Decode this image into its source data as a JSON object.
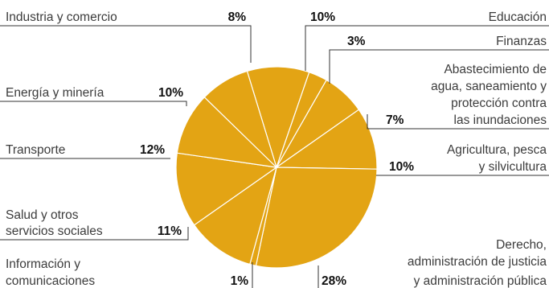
{
  "chart_data": {
    "type": "pie",
    "title": "",
    "colors": {
      "slice": "#e3a414",
      "separator": "#ffffff",
      "text": "#3c3c3c",
      "percent": "#111111"
    },
    "slices": [
      {
        "label": "Educación",
        "value": 10,
        "display": "10%"
      },
      {
        "label": "Finanzas",
        "value": 3,
        "display": "3%"
      },
      {
        "label": "Abastecimiento de agua, saneamiento y protección contra las inundaciones",
        "value": 7,
        "display": "7%"
      },
      {
        "label": "Agricultura, pesca y silvicultura",
        "value": 10,
        "display": "10%"
      },
      {
        "label": "Derecho, administración de justicia y administración pública",
        "value": 28,
        "display": "28%"
      },
      {
        "label": "Información y comunicaciones",
        "value": 1,
        "display": "1%"
      },
      {
        "label": "Salud y otros servicios sociales",
        "value": 11,
        "display": "11%"
      },
      {
        "label": "Transporte",
        "value": 12,
        "display": "12%"
      },
      {
        "label": "Energía y minería",
        "value": 10,
        "display": "10%"
      },
      {
        "label": "Industria y comercio",
        "value": 8,
        "display": "8%"
      }
    ]
  },
  "labels": {
    "educacion": {
      "line1": "Educación"
    },
    "finanzas": {
      "line1": "Finanzas"
    },
    "agua": {
      "line1": "Abastecimiento de",
      "line2": "agua, saneamiento y",
      "line3": "protección contra",
      "line4": "las inundaciones"
    },
    "agricultura": {
      "line1": "Agricultura, pesca",
      "line2": "y silvicultura"
    },
    "derecho": {
      "line1": "Derecho,",
      "line2": "administración de justicia",
      "line3": "y administración pública"
    },
    "informacion": {
      "line1": "Información y",
      "line2": "comunicaciones"
    },
    "salud": {
      "line1": "Salud y otros",
      "line2": "servicios sociales"
    },
    "transporte": {
      "line1": "Transporte"
    },
    "energia": {
      "line1": "Energía y minería"
    },
    "industria": {
      "line1": "Industria y comercio"
    }
  }
}
